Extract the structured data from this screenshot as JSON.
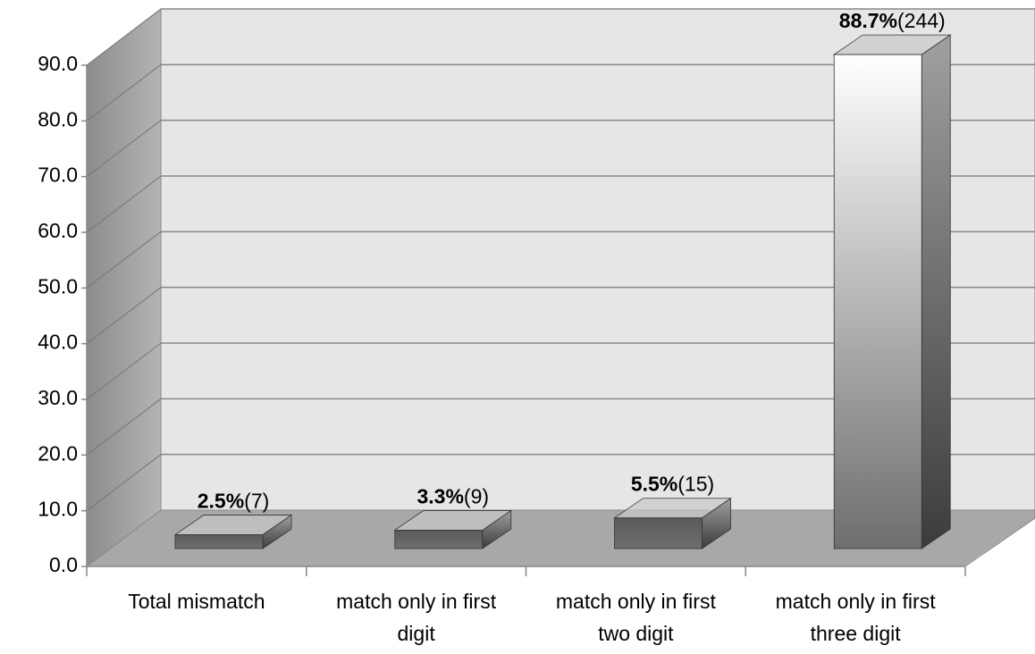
{
  "chart_data": {
    "type": "bar3d",
    "categories": [
      "Total mismatch",
      "match only in first digit",
      "match only in first two digit",
      "match only in first three digit"
    ],
    "values": [
      2.5,
      3.3,
      5.5,
      88.7
    ],
    "value_labels": [
      "2.5%",
      "3.3%",
      "5.5%",
      "88.7%"
    ],
    "count_labels": [
      "(7)",
      "(9)",
      "(15)",
      "(244)"
    ],
    "colors": [
      "#5a5a5a",
      "#5a5a5a",
      "#5a5a5a",
      "#ffffff"
    ],
    "ylim": [
      0,
      90
    ],
    "yticks": [
      {
        "value": 0,
        "label": "0.0"
      },
      {
        "value": 10,
        "label": "10.0"
      },
      {
        "value": 20,
        "label": "20.0"
      },
      {
        "value": 30,
        "label": "30.0"
      },
      {
        "value": 40,
        "label": "40.0"
      },
      {
        "value": 50,
        "label": "50.0"
      },
      {
        "value": 60,
        "label": "60.0"
      },
      {
        "value": 70,
        "label": "70.0"
      },
      {
        "value": 80,
        "label": "80.0"
      },
      {
        "value": 90,
        "label": "90.0"
      }
    ],
    "grid": true
  }
}
